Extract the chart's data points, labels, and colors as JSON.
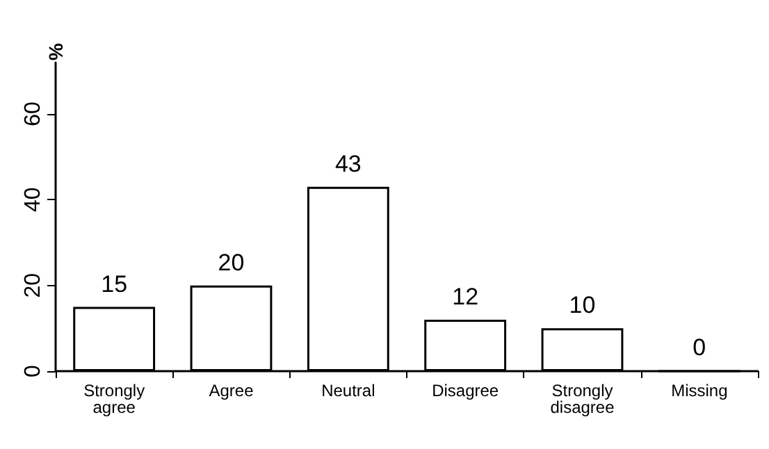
{
  "chart_data": {
    "type": "bar",
    "ylabel": "%",
    "categories": [
      "Strongly agree",
      "Agree",
      "Neutral",
      "Disagree",
      "Strongly disagree",
      "Missing"
    ],
    "values": [
      15,
      20,
      43,
      12,
      10,
      0
    ],
    "color": "#ffffff",
    "ylim": [
      0,
      72
    ],
    "yticks": [
      0,
      20,
      40,
      60
    ],
    "grid": false,
    "data_labels": true
  }
}
